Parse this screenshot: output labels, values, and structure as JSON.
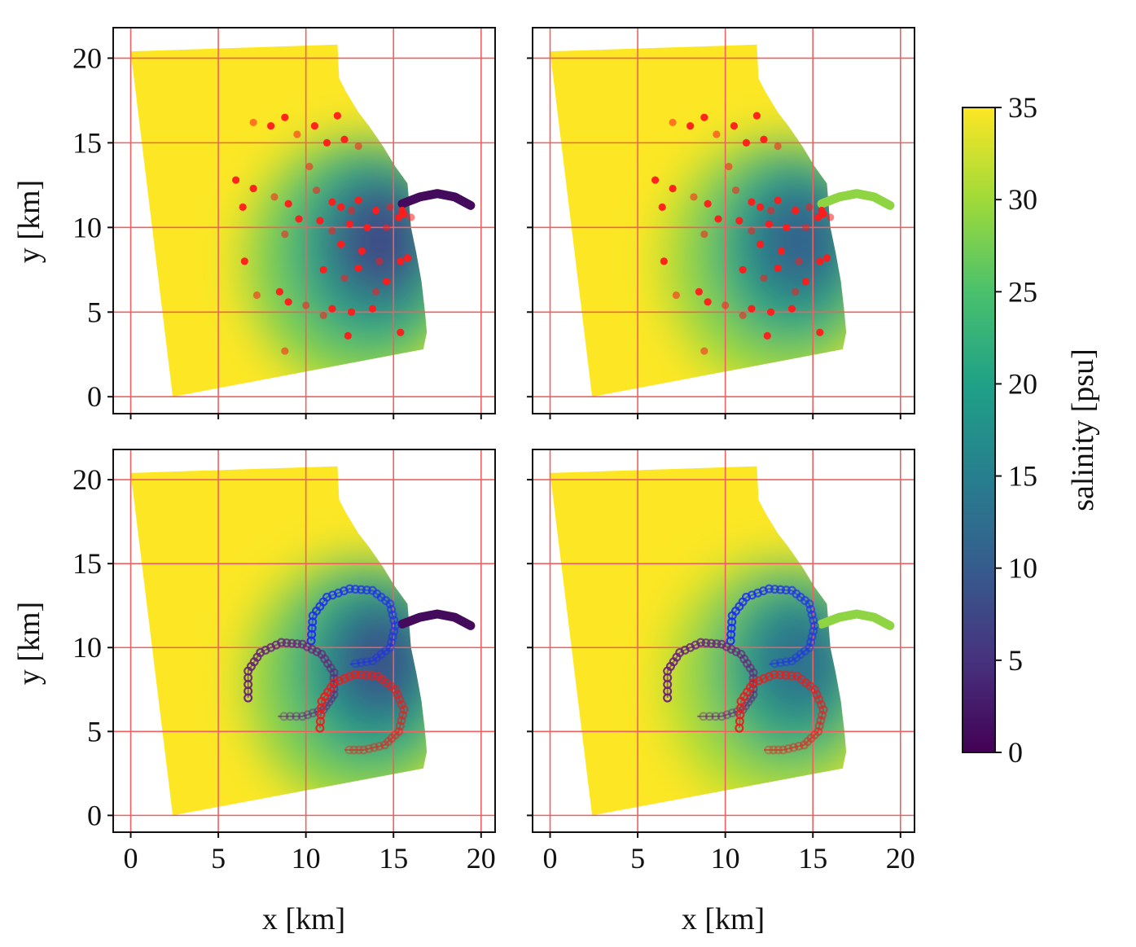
{
  "chart_data": {
    "type": "heatmap",
    "title": "",
    "layout": "2x2 grid of salinity maps with shared colorbar",
    "xlabel": "x [km]",
    "ylabel": "y [km]",
    "xlim": [
      -1,
      20.8
    ],
    "ylim": [
      -1,
      21.8
    ],
    "xticks": [
      "0",
      "5",
      "10",
      "15",
      "20"
    ],
    "yticks": [
      "0",
      "5",
      "10",
      "15",
      "20"
    ],
    "grid": true,
    "grid_color": "#f06060",
    "colorbar": {
      "label": "salinity [psu]",
      "range": [
        0,
        35
      ],
      "ticks": [
        "0",
        "5",
        "10",
        "15",
        "20",
        "25",
        "30",
        "35"
      ],
      "colormap": "viridis",
      "placement": "right"
    },
    "domain_polygon": [
      [
        0,
        20.4
      ],
      [
        11.8,
        20.8
      ],
      [
        11.9,
        18.8
      ],
      [
        12.3,
        18.0
      ],
      [
        13.0,
        16.8
      ],
      [
        13.6,
        16.0
      ],
      [
        14.4,
        14.8
      ],
      [
        15.1,
        13.6
      ],
      [
        15.8,
        12.6
      ],
      [
        15.9,
        11.3
      ],
      [
        16.0,
        10.0
      ],
      [
        16.3,
        8.5
      ],
      [
        16.6,
        6.8
      ],
      [
        16.8,
        5.0
      ],
      [
        16.9,
        3.8
      ],
      [
        16.7,
        2.8
      ],
      [
        2.4,
        0.0
      ]
    ],
    "river_channel": [
      [
        15.5,
        11.4
      ],
      [
        16.5,
        11.8
      ],
      [
        17.5,
        12.0
      ],
      [
        18.5,
        11.8
      ],
      [
        19.4,
        11.3
      ]
    ],
    "plume_center": [
      13.8,
      8.8
    ],
    "panels": [
      {
        "name": "top-left",
        "min_salinity": 8,
        "river_salinity": 1,
        "points": [
          [
            7.0,
            16.2
          ],
          [
            8.0,
            16.0
          ],
          [
            8.8,
            16.5
          ],
          [
            9.5,
            15.5
          ],
          [
            10.5,
            16.0
          ],
          [
            11.8,
            16.6
          ],
          [
            10.2,
            13.6
          ],
          [
            11.2,
            15.0
          ],
          [
            12.2,
            15.2
          ],
          [
            13.0,
            14.8
          ],
          [
            6.0,
            12.8
          ],
          [
            7.0,
            12.3
          ],
          [
            8.2,
            11.8
          ],
          [
            6.4,
            11.2
          ],
          [
            9.0,
            11.4
          ],
          [
            10.6,
            12.2
          ],
          [
            11.5,
            11.5
          ],
          [
            12.0,
            11.2
          ],
          [
            12.6,
            11.0
          ],
          [
            13.0,
            11.6
          ],
          [
            14.0,
            11.0
          ],
          [
            14.8,
            11.2
          ],
          [
            15.5,
            11.0
          ],
          [
            15.3,
            10.6
          ],
          [
            14.6,
            10.0
          ],
          [
            13.5,
            10.0
          ],
          [
            12.5,
            10.2
          ],
          [
            11.5,
            9.8
          ],
          [
            10.8,
            10.4
          ],
          [
            9.6,
            10.5
          ],
          [
            8.8,
            9.6
          ],
          [
            12.0,
            9.0
          ],
          [
            13.2,
            8.6
          ],
          [
            14.2,
            8.0
          ],
          [
            15.4,
            8.0
          ],
          [
            13.0,
            7.6
          ],
          [
            12.2,
            7.0
          ],
          [
            11.0,
            7.5
          ],
          [
            6.5,
            8.0
          ],
          [
            7.2,
            6.0
          ],
          [
            8.5,
            6.2
          ],
          [
            9.0,
            5.6
          ],
          [
            10.0,
            5.4
          ],
          [
            11.5,
            5.2
          ],
          [
            12.6,
            5.0
          ],
          [
            14.0,
            6.2
          ],
          [
            14.6,
            6.8
          ],
          [
            13.8,
            5.2
          ],
          [
            11.0,
            4.8
          ],
          [
            12.4,
            3.6
          ],
          [
            15.4,
            3.8
          ],
          [
            8.8,
            2.7
          ],
          [
            15.8,
            8.2
          ],
          [
            15.6,
            10.8
          ],
          [
            16.0,
            10.6
          ]
        ]
      },
      {
        "name": "top-right",
        "min_salinity": 11,
        "river_salinity": 29,
        "points": [
          [
            7.0,
            16.2
          ],
          [
            8.0,
            16.0
          ],
          [
            8.8,
            16.5
          ],
          [
            9.5,
            15.5
          ],
          [
            10.5,
            16.0
          ],
          [
            11.8,
            16.6
          ],
          [
            10.2,
            13.6
          ],
          [
            11.2,
            15.0
          ],
          [
            12.2,
            15.2
          ],
          [
            13.0,
            14.8
          ],
          [
            6.0,
            12.8
          ],
          [
            7.0,
            12.3
          ],
          [
            8.2,
            11.8
          ],
          [
            6.4,
            11.2
          ],
          [
            9.0,
            11.4
          ],
          [
            10.6,
            12.2
          ],
          [
            11.5,
            11.5
          ],
          [
            12.0,
            11.2
          ],
          [
            12.6,
            11.0
          ],
          [
            13.0,
            11.6
          ],
          [
            14.0,
            11.0
          ],
          [
            14.8,
            11.2
          ],
          [
            15.5,
            11.0
          ],
          [
            15.3,
            10.6
          ],
          [
            14.6,
            10.0
          ],
          [
            13.5,
            10.0
          ],
          [
            12.5,
            10.2
          ],
          [
            11.5,
            9.8
          ],
          [
            10.8,
            10.4
          ],
          [
            9.6,
            10.5
          ],
          [
            8.8,
            9.6
          ],
          [
            12.0,
            9.0
          ],
          [
            13.2,
            8.6
          ],
          [
            14.2,
            8.0
          ],
          [
            15.4,
            8.0
          ],
          [
            13.0,
            7.6
          ],
          [
            12.2,
            7.0
          ],
          [
            11.0,
            7.5
          ],
          [
            6.5,
            8.0
          ],
          [
            7.2,
            6.0
          ],
          [
            8.5,
            6.2
          ],
          [
            9.0,
            5.6
          ],
          [
            10.0,
            5.4
          ],
          [
            11.5,
            5.2
          ],
          [
            12.6,
            5.0
          ],
          [
            14.0,
            6.2
          ],
          [
            14.6,
            6.8
          ],
          [
            13.8,
            5.2
          ],
          [
            11.0,
            4.8
          ],
          [
            12.4,
            3.6
          ],
          [
            15.4,
            3.8
          ],
          [
            8.8,
            2.7
          ],
          [
            15.8,
            8.2
          ],
          [
            15.6,
            10.8
          ],
          [
            16.0,
            10.6
          ]
        ]
      },
      {
        "name": "bottom-left",
        "min_salinity": 9,
        "river_salinity": 1,
        "tracks": [
          {
            "color": "#1f2cf0",
            "points": [
              [
                10.3,
                10.4
              ],
              [
                10.4,
                11.9
              ],
              [
                11.2,
                13.0
              ],
              [
                12.5,
                13.5
              ],
              [
                13.8,
                13.4
              ],
              [
                14.8,
                12.6
              ],
              [
                15.1,
                11.3
              ],
              [
                14.8,
                10.0
              ],
              [
                13.8,
                9.2
              ],
              [
                12.5,
                9.0
              ]
            ]
          },
          {
            "color": "#6a1f7a",
            "points": [
              [
                6.7,
                7.0
              ],
              [
                6.7,
                8.6
              ],
              [
                7.4,
                9.7
              ],
              [
                8.6,
                10.3
              ],
              [
                9.8,
                10.2
              ],
              [
                10.9,
                9.6
              ],
              [
                11.6,
                8.5
              ],
              [
                11.6,
                7.2
              ],
              [
                11.0,
                6.3
              ],
              [
                9.8,
                5.9
              ],
              [
                8.4,
                5.9
              ]
            ]
          },
          {
            "color": "#e81e1e",
            "points": [
              [
                10.8,
                5.2
              ],
              [
                10.9,
                6.8
              ],
              [
                11.6,
                7.9
              ],
              [
                12.8,
                8.4
              ],
              [
                14.1,
                8.3
              ],
              [
                15.1,
                7.5
              ],
              [
                15.6,
                6.3
              ],
              [
                15.3,
                5.0
              ],
              [
                14.5,
                4.2
              ],
              [
                13.3,
                3.9
              ],
              [
                12.2,
                3.9
              ]
            ]
          }
        ]
      },
      {
        "name": "bottom-right",
        "min_salinity": 13,
        "river_salinity": 29,
        "tracks": [
          {
            "color": "#1f2cf0",
            "points": [
              [
                10.3,
                10.4
              ],
              [
                10.4,
                11.9
              ],
              [
                11.2,
                13.0
              ],
              [
                12.5,
                13.5
              ],
              [
                13.8,
                13.4
              ],
              [
                14.8,
                12.6
              ],
              [
                15.1,
                11.3
              ],
              [
                14.8,
                10.0
              ],
              [
                13.8,
                9.2
              ],
              [
                12.5,
                9.0
              ]
            ]
          },
          {
            "color": "#6a1f7a",
            "points": [
              [
                6.7,
                7.0
              ],
              [
                6.7,
                8.6
              ],
              [
                7.4,
                9.7
              ],
              [
                8.6,
                10.3
              ],
              [
                9.8,
                10.2
              ],
              [
                10.9,
                9.6
              ],
              [
                11.6,
                8.5
              ],
              [
                11.6,
                7.2
              ],
              [
                11.0,
                6.3
              ],
              [
                9.8,
                5.9
              ],
              [
                8.4,
                5.9
              ]
            ]
          },
          {
            "color": "#e81e1e",
            "points": [
              [
                10.8,
                5.2
              ],
              [
                10.9,
                6.8
              ],
              [
                11.6,
                7.9
              ],
              [
                12.8,
                8.4
              ],
              [
                14.1,
                8.3
              ],
              [
                15.1,
                7.5
              ],
              [
                15.6,
                6.3
              ],
              [
                15.3,
                5.0
              ],
              [
                14.5,
                4.2
              ],
              [
                13.3,
                3.9
              ],
              [
                12.2,
                3.9
              ]
            ]
          }
        ]
      }
    ]
  }
}
